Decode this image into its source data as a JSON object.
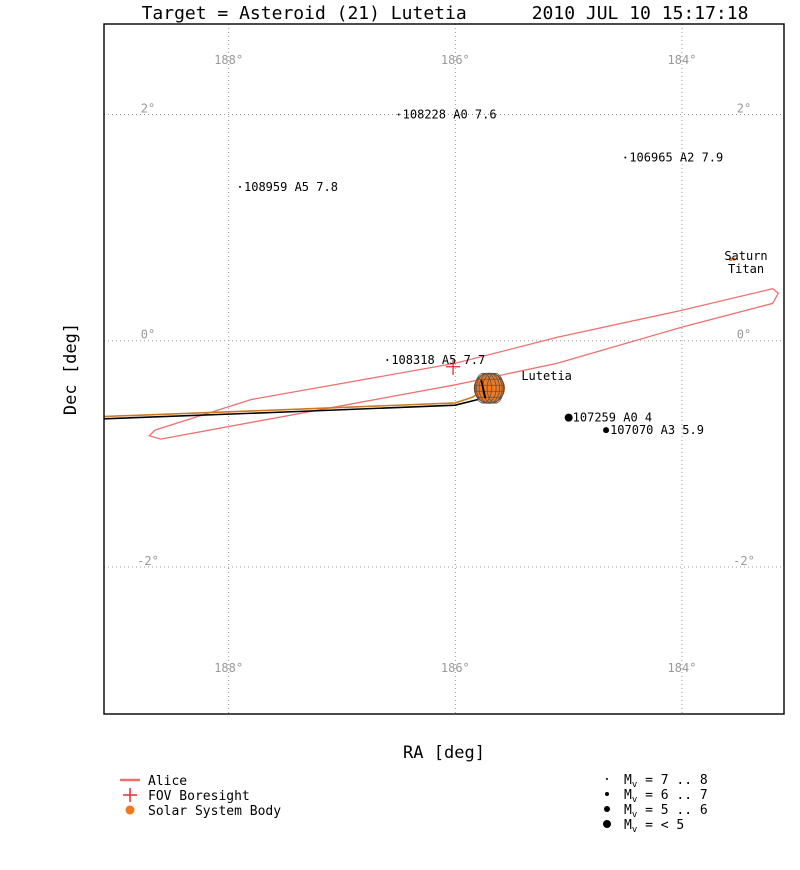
{
  "chart_data": {
    "type": "scatter",
    "title": "Target = Asteroid (21) Lutetia      2010 JUL 10 15:17:18",
    "xlabel": "RA [deg]",
    "ylabel": "Dec [deg]",
    "xlim": [
      189.1,
      183.1
    ],
    "ylim": [
      -3.3,
      2.8
    ],
    "grid": true,
    "x_ticks": [
      {
        "value": 188,
        "label": "188°"
      },
      {
        "value": 186,
        "label": "186°"
      },
      {
        "value": 184,
        "label": "184°"
      }
    ],
    "y_ticks": [
      {
        "value": 2,
        "label": "2°"
      },
      {
        "value": 0,
        "label": "0°"
      },
      {
        "value": -2,
        "label": "-2°"
      }
    ],
    "stars": [
      {
        "id": "108228",
        "label": "108228 A0 7.6",
        "ra": 186.5,
        "dec": 2.0,
        "mag": 7.6
      },
      {
        "id": "106965",
        "label": "106965 A2 7.9",
        "ra": 184.5,
        "dec": 1.62,
        "mag": 7.9
      },
      {
        "id": "108959",
        "label": "108959 A5 7.8",
        "ra": 187.9,
        "dec": 1.36,
        "mag": 7.8
      },
      {
        "id": "108318",
        "label": "108318 A5 7.7",
        "ra": 186.6,
        "dec": -0.17,
        "mag": 7.7
      },
      {
        "id": "107259",
        "label": "107259 A0 4",
        "ra": 185.0,
        "dec": -0.68,
        "mag": 4
      },
      {
        "id": "107070",
        "label": "107070 A3 5.9",
        "ra": 184.67,
        "dec": -0.79,
        "mag": 5.9
      }
    ],
    "bodies": [
      {
        "name": "Lutetia",
        "ra": 185.7,
        "dec": -0.42,
        "label": "Lutetia"
      },
      {
        "name": "Saturn",
        "ra": 183.57,
        "dec": 0.72,
        "label": "Saturn"
      },
      {
        "name": "Titan",
        "ra": 183.54,
        "dec": 0.72,
        "label": "Titan"
      }
    ],
    "alice_fov": {
      "color": "#f07070",
      "outline": [
        [
          188.6,
          -0.87
        ],
        [
          186.0,
          -0.39
        ],
        [
          185.1,
          -0.2
        ],
        [
          184.0,
          0.12
        ],
        [
          183.2,
          0.33
        ],
        [
          183.15,
          0.42
        ],
        [
          183.2,
          0.46
        ],
        [
          184.0,
          0.27
        ],
        [
          185.1,
          0.03
        ],
        [
          186.0,
          -0.2
        ],
        [
          187.8,
          -0.52
        ],
        [
          188.65,
          -0.79
        ],
        [
          188.7,
          -0.84
        ],
        [
          188.6,
          -0.87
        ]
      ]
    },
    "fov_boresight": {
      "ra": 186.02,
      "dec": -0.23,
      "color": "#e03030"
    },
    "tracks": [
      {
        "color": "#d07820",
        "points": [
          [
            189.1,
            -0.67
          ],
          [
            187.5,
            -0.61
          ],
          [
            186.0,
            -0.55
          ],
          [
            185.85,
            -0.5
          ],
          [
            185.77,
            -0.45
          ]
        ]
      },
      {
        "color": "#000000",
        "points": [
          [
            189.1,
            -0.69
          ],
          [
            187.5,
            -0.63
          ],
          [
            186.0,
            -0.57
          ],
          [
            185.8,
            -0.52
          ]
        ]
      }
    ]
  },
  "legend_left": [
    {
      "label": "Alice",
      "symbol": "line",
      "color": "#f07070"
    },
    {
      "label": "FOV Boresight",
      "symbol": "plus",
      "color": "#e03030"
    },
    {
      "label": "Solar System Body",
      "symbol": "dot",
      "color": "#f07820"
    }
  ],
  "legend_right": [
    {
      "label": "7 .. 8",
      "size": 1
    },
    {
      "label": "6 .. 7",
      "size": 2
    },
    {
      "label": "5 .. 6",
      "size": 3
    },
    {
      "label": "< 5",
      "size": 4
    }
  ],
  "legend_prefix": "M",
  "legend_sub": "v",
  "legend_eq": " = "
}
